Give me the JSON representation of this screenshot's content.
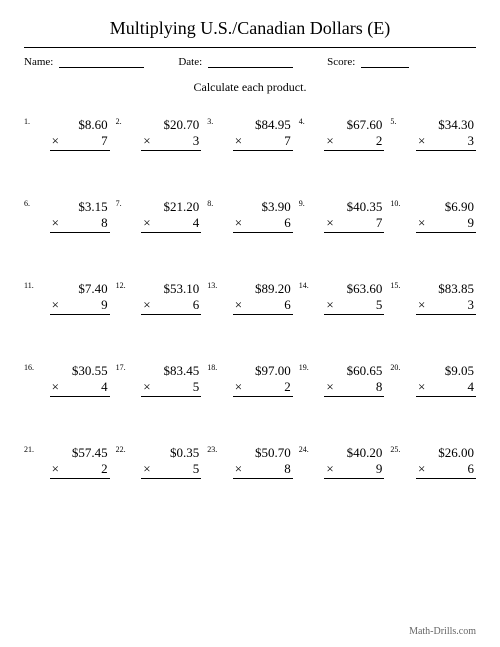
{
  "title": "Multiplying U.S./Canadian Dollars (E)",
  "header": {
    "name_label": "Name:",
    "date_label": "Date:",
    "score_label": "Score:"
  },
  "instruction": "Calculate each product.",
  "mult_sign": "×",
  "problems": [
    {
      "n": "1.",
      "top": "$8.60",
      "bot": "7"
    },
    {
      "n": "2.",
      "top": "$20.70",
      "bot": "3"
    },
    {
      "n": "3.",
      "top": "$84.95",
      "bot": "7"
    },
    {
      "n": "4.",
      "top": "$67.60",
      "bot": "2"
    },
    {
      "n": "5.",
      "top": "$34.30",
      "bot": "3"
    },
    {
      "n": "6.",
      "top": "$3.15",
      "bot": "8"
    },
    {
      "n": "7.",
      "top": "$21.20",
      "bot": "4"
    },
    {
      "n": "8.",
      "top": "$3.90",
      "bot": "6"
    },
    {
      "n": "9.",
      "top": "$40.35",
      "bot": "7"
    },
    {
      "n": "10.",
      "top": "$6.90",
      "bot": "9"
    },
    {
      "n": "11.",
      "top": "$7.40",
      "bot": "9"
    },
    {
      "n": "12.",
      "top": "$53.10",
      "bot": "6"
    },
    {
      "n": "13.",
      "top": "$89.20",
      "bot": "6"
    },
    {
      "n": "14.",
      "top": "$63.60",
      "bot": "5"
    },
    {
      "n": "15.",
      "top": "$83.85",
      "bot": "3"
    },
    {
      "n": "16.",
      "top": "$30.55",
      "bot": "4"
    },
    {
      "n": "17.",
      "top": "$83.45",
      "bot": "5"
    },
    {
      "n": "18.",
      "top": "$97.00",
      "bot": "2"
    },
    {
      "n": "19.",
      "top": "$60.65",
      "bot": "8"
    },
    {
      "n": "20.",
      "top": "$9.05",
      "bot": "4"
    },
    {
      "n": "21.",
      "top": "$57.45",
      "bot": "2"
    },
    {
      "n": "22.",
      "top": "$0.35",
      "bot": "5"
    },
    {
      "n": "23.",
      "top": "$50.70",
      "bot": "8"
    },
    {
      "n": "24.",
      "top": "$40.20",
      "bot": "9"
    },
    {
      "n": "25.",
      "top": "$26.00",
      "bot": "6"
    }
  ],
  "footer": "Math-Drills.com"
}
